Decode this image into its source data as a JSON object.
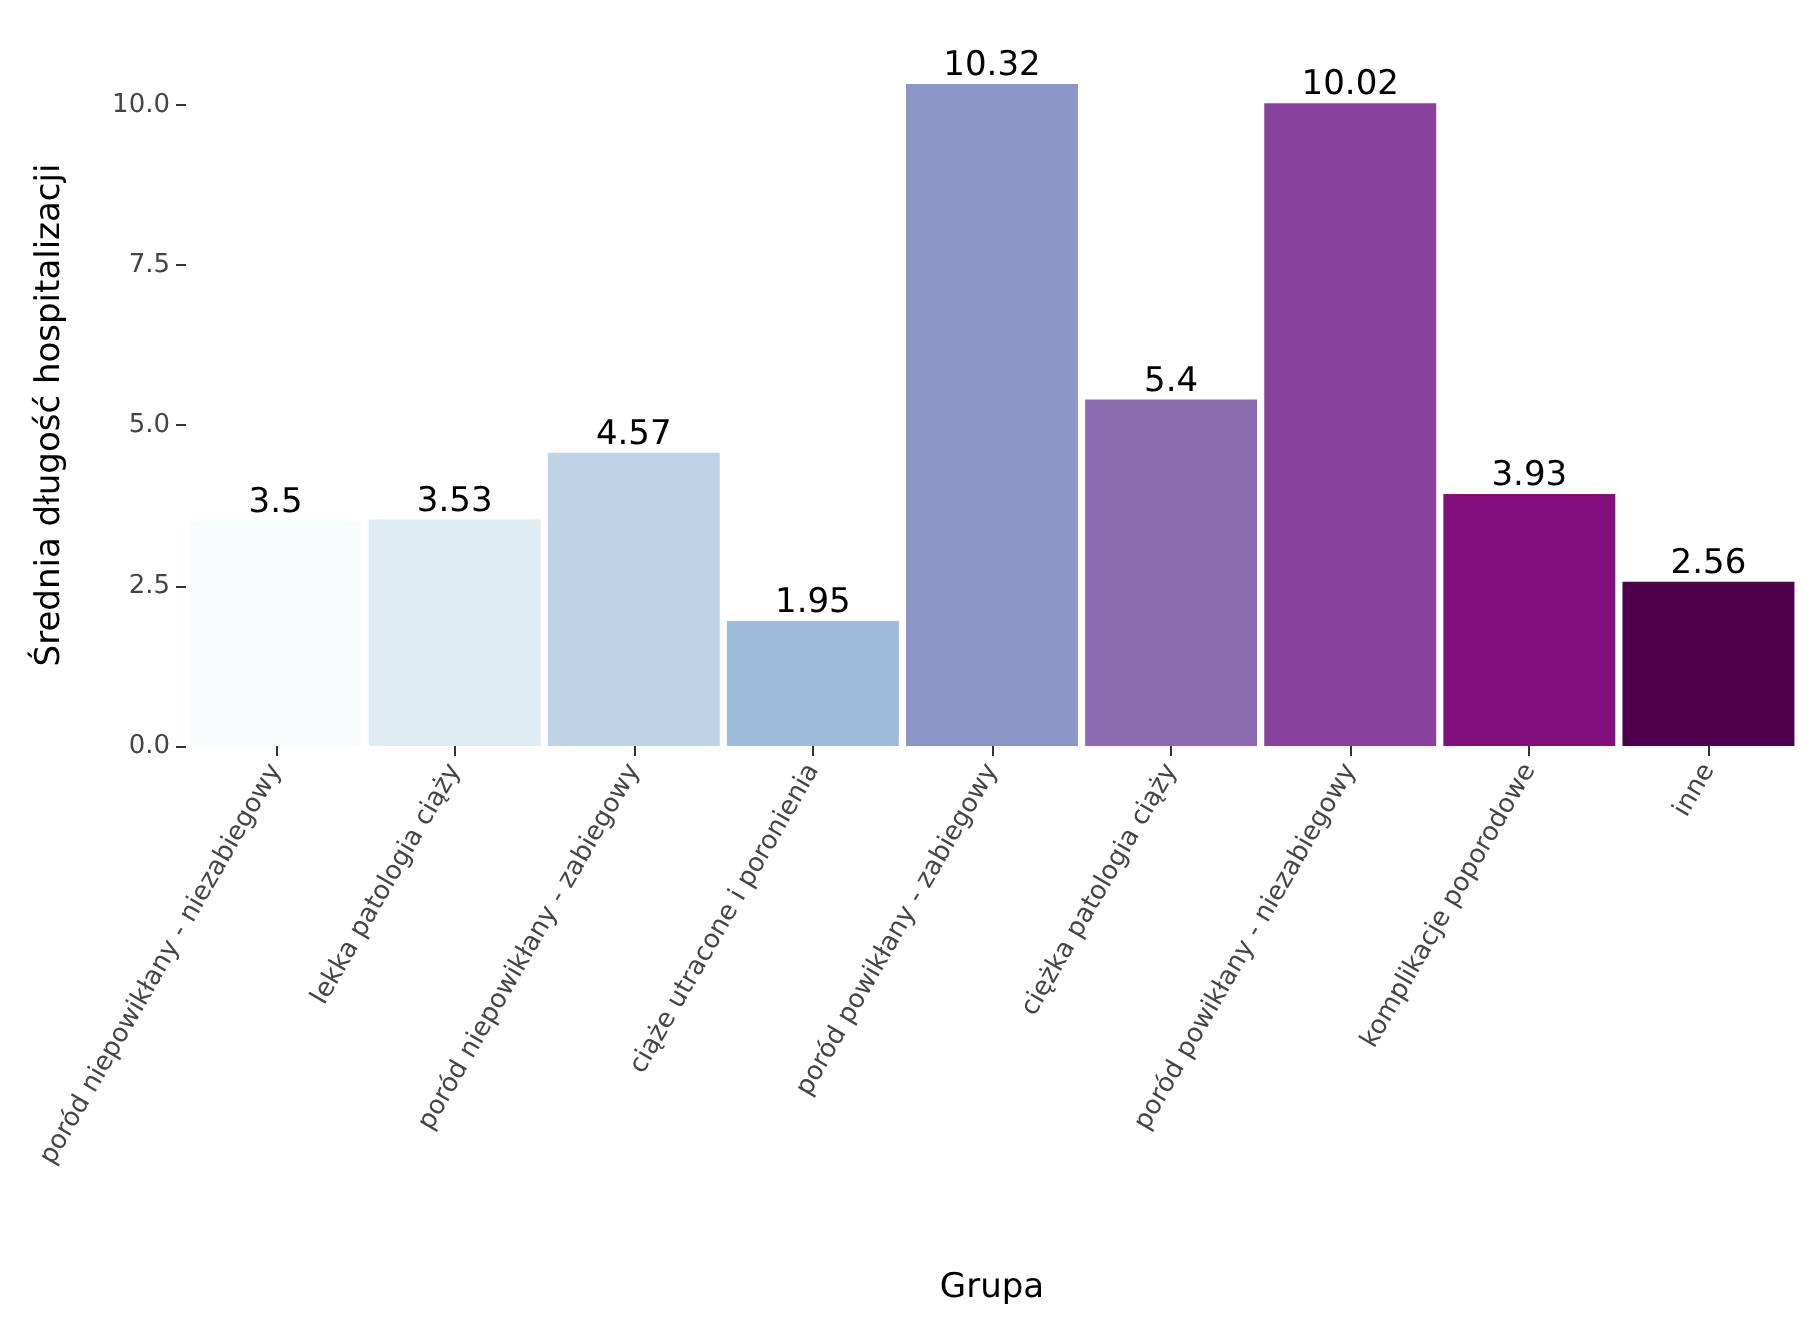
{
  "chart_data": {
    "type": "bar",
    "xlabel": "Grupa",
    "ylabel": "Średnia długość hospitalizacji",
    "categories": [
      "poród niepowikłany - niezabiegowy",
      "lekka patologia ciąży",
      "poród niepowikłany - zabiegowy",
      "ciąże utracone i poronienia",
      "poród powikłany - zabiegowy",
      "ciężka patologia ciąży",
      "poród powikłany - niezabiegowy",
      "komplikacje poporodowe",
      "inne"
    ],
    "values": [
      3.5,
      3.53,
      4.57,
      1.95,
      10.32,
      5.4,
      10.02,
      3.93,
      2.56
    ],
    "colors": [
      "#f7fcfd",
      "#e0ecf4",
      "#bfd3e6",
      "#9ebcda",
      "#8c96c6",
      "#8c6bb1",
      "#88419d",
      "#810f7c",
      "#4d004b"
    ],
    "yticks": [
      {
        "value": 0,
        "label": "0.0"
      },
      {
        "value": 2.5,
        "label": "2.5"
      },
      {
        "value": 5,
        "label": "5.0"
      },
      {
        "value": 7.5,
        "label": "7.5"
      },
      {
        "value": 10,
        "label": "10.0"
      }
    ],
    "ylim": [
      0,
      10.32
    ],
    "data_labels": true
  }
}
